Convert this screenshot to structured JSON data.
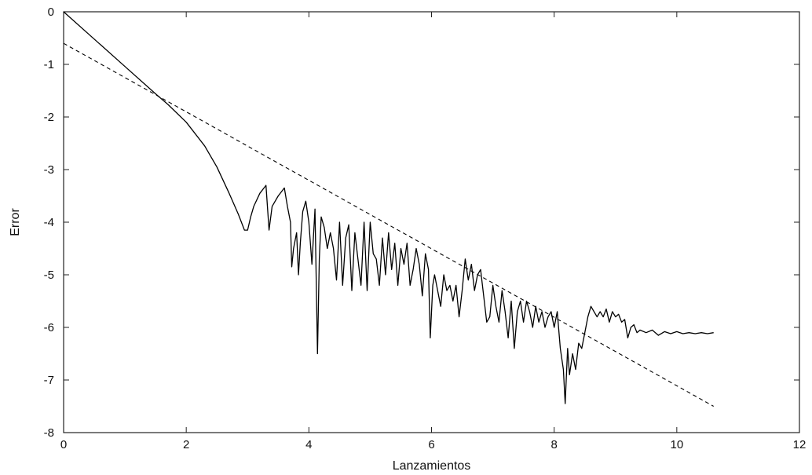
{
  "chart_data": {
    "type": "line",
    "title": "",
    "xlabel": "Lanzamientos",
    "ylabel": "Error",
    "xlim": [
      0,
      12
    ],
    "ylim": [
      -8,
      0
    ],
    "grid": false,
    "legend": "none",
    "x_ticks": [
      0,
      2,
      4,
      6,
      8,
      10,
      12
    ],
    "y_ticks": [
      0,
      -1,
      -2,
      -3,
      -4,
      -5,
      -6,
      -7,
      -8
    ],
    "series": [
      {
        "style": "solid",
        "color": "#000000",
        "x": [
          0,
          0.5,
          1.0,
          1.5,
          1.7,
          2.0,
          2.3,
          2.5,
          2.7,
          2.85,
          2.95,
          3.0,
          3.05,
          3.1,
          3.2,
          3.3,
          3.35,
          3.4,
          3.5,
          3.6,
          3.65,
          3.7,
          3.72,
          3.75,
          3.8,
          3.83,
          3.86,
          3.9,
          3.95,
          4.0,
          4.05,
          4.1,
          4.14,
          4.17,
          4.2,
          4.25,
          4.3,
          4.35,
          4.4,
          4.45,
          4.5,
          4.55,
          4.6,
          4.65,
          4.7,
          4.75,
          4.8,
          4.85,
          4.9,
          4.95,
          5.0,
          5.05,
          5.1,
          5.15,
          5.2,
          5.25,
          5.3,
          5.35,
          5.4,
          5.45,
          5.5,
          5.55,
          5.6,
          5.65,
          5.7,
          5.75,
          5.8,
          5.85,
          5.9,
          5.95,
          5.98,
          6.02,
          6.05,
          6.1,
          6.15,
          6.2,
          6.25,
          6.3,
          6.35,
          6.4,
          6.45,
          6.5,
          6.55,
          6.6,
          6.65,
          6.7,
          6.75,
          6.8,
          6.85,
          6.9,
          6.95,
          7.0,
          7.05,
          7.1,
          7.15,
          7.2,
          7.25,
          7.3,
          7.35,
          7.4,
          7.45,
          7.5,
          7.55,
          7.6,
          7.65,
          7.7,
          7.75,
          7.8,
          7.85,
          7.9,
          7.95,
          8.0,
          8.05,
          8.1,
          8.15,
          8.18,
          8.22,
          8.25,
          8.3,
          8.35,
          8.4,
          8.45,
          8.5,
          8.55,
          8.6,
          8.65,
          8.7,
          8.75,
          8.8,
          8.85,
          8.9,
          8.95,
          9.0,
          9.05,
          9.1,
          9.15,
          9.2,
          9.25,
          9.3,
          9.35,
          9.4,
          9.5,
          9.6,
          9.7,
          9.8,
          9.9,
          10.0,
          10.1,
          10.2,
          10.3,
          10.4,
          10.5,
          10.6
        ],
        "y": [
          0,
          -0.52,
          -1.04,
          -1.56,
          -1.76,
          -2.1,
          -2.55,
          -2.95,
          -3.45,
          -3.85,
          -4.15,
          -4.15,
          -3.9,
          -3.7,
          -3.45,
          -3.3,
          -4.15,
          -3.7,
          -3.5,
          -3.35,
          -3.7,
          -4.0,
          -4.85,
          -4.5,
          -4.2,
          -5.0,
          -4.4,
          -3.8,
          -3.6,
          -4.0,
          -4.8,
          -3.75,
          -6.5,
          -4.7,
          -3.9,
          -4.1,
          -4.5,
          -4.2,
          -4.5,
          -5.1,
          -4.0,
          -5.2,
          -4.3,
          -4.05,
          -5.3,
          -4.2,
          -4.7,
          -5.2,
          -4.0,
          -5.3,
          -4.0,
          -4.6,
          -4.7,
          -5.2,
          -4.3,
          -5.0,
          -4.2,
          -4.9,
          -4.4,
          -5.2,
          -4.5,
          -4.8,
          -4.4,
          -5.2,
          -4.9,
          -4.5,
          -4.8,
          -5.4,
          -4.6,
          -4.9,
          -6.2,
          -5.2,
          -5.0,
          -5.3,
          -5.6,
          -5.0,
          -5.3,
          -5.2,
          -5.5,
          -5.2,
          -5.8,
          -5.3,
          -4.7,
          -5.1,
          -4.8,
          -5.3,
          -5.0,
          -4.9,
          -5.4,
          -5.9,
          -5.8,
          -5.2,
          -5.6,
          -5.9,
          -5.3,
          -5.7,
          -6.2,
          -5.5,
          -6.4,
          -5.7,
          -5.5,
          -5.9,
          -5.5,
          -5.7,
          -6.0,
          -5.6,
          -5.9,
          -5.7,
          -6.0,
          -5.8,
          -5.7,
          -6.0,
          -5.7,
          -6.4,
          -6.8,
          -7.45,
          -6.4,
          -6.9,
          -6.5,
          -6.8,
          -6.3,
          -6.4,
          -6.1,
          -5.8,
          -5.6,
          -5.7,
          -5.8,
          -5.7,
          -5.8,
          -5.65,
          -5.9,
          -5.7,
          -5.8,
          -5.75,
          -5.9,
          -5.85,
          -6.2,
          -6.0,
          -5.95,
          -6.1,
          -6.05,
          -6.1,
          -6.05,
          -6.15,
          -6.08,
          -6.12,
          -6.08,
          -6.12,
          -6.1,
          -6.12,
          -6.1,
          -6.12,
          -6.1
        ]
      },
      {
        "style": "dashed",
        "color": "#000000",
        "x": [
          0,
          10.6
        ],
        "y": [
          -0.6,
          -7.5
        ]
      }
    ]
  }
}
